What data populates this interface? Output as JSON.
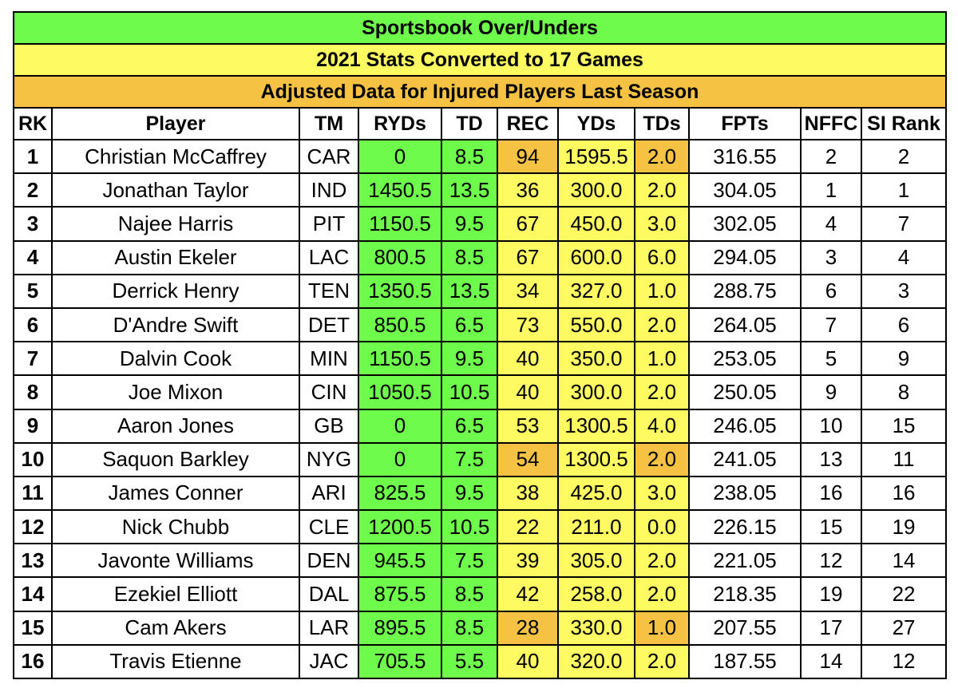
{
  "titles": {
    "line1": "Sportsbook Over/Unders",
    "line2": "2021 Stats Converted to 17 Games",
    "line3": "Adjusted Data for Injured Players Last Season"
  },
  "columns": [
    "RK",
    "Player",
    "TM",
    "RYDs",
    "TD",
    "REC",
    "YDs",
    "TDs",
    "FPTs",
    "NFFC",
    "SI Rank"
  ],
  "colors": {
    "green": "#6ffb4c",
    "yellow": "#fdfa62",
    "orange": "#f5c243",
    "white": "#ffffff"
  },
  "rows": [
    {
      "rk": "1",
      "player": "Christian McCaffrey",
      "tm": "CAR",
      "ryds": "0",
      "td": "8.5",
      "rec": "94",
      "yds": "1595.5",
      "tds": "2.0",
      "fpts": "316.55",
      "nffc": "2",
      "si": "2",
      "rec_color": "orange",
      "tds_color": "orange"
    },
    {
      "rk": "2",
      "player": "Jonathan Taylor",
      "tm": "IND",
      "ryds": "1450.5",
      "td": "13.5",
      "rec": "36",
      "yds": "300.0",
      "tds": "2.0",
      "fpts": "304.05",
      "nffc": "1",
      "si": "1",
      "rec_color": "yellow",
      "tds_color": "yellow"
    },
    {
      "rk": "3",
      "player": "Najee Harris",
      "tm": "PIT",
      "ryds": "1150.5",
      "td": "9.5",
      "rec": "67",
      "yds": "450.0",
      "tds": "3.0",
      "fpts": "302.05",
      "nffc": "4",
      "si": "7",
      "rec_color": "yellow",
      "tds_color": "yellow"
    },
    {
      "rk": "4",
      "player": "Austin Ekeler",
      "tm": "LAC",
      "ryds": "800.5",
      "td": "8.5",
      "rec": "67",
      "yds": "600.0",
      "tds": "6.0",
      "fpts": "294.05",
      "nffc": "3",
      "si": "4",
      "rec_color": "yellow",
      "tds_color": "yellow"
    },
    {
      "rk": "5",
      "player": "Derrick Henry",
      "tm": "TEN",
      "ryds": "1350.5",
      "td": "13.5",
      "rec": "34",
      "yds": "327.0",
      "tds": "1.0",
      "fpts": "288.75",
      "nffc": "6",
      "si": "3",
      "rec_color": "yellow",
      "tds_color": "yellow"
    },
    {
      "rk": "6",
      "player": "D'Andre Swift",
      "tm": "DET",
      "ryds": "850.5",
      "td": "6.5",
      "rec": "73",
      "yds": "550.0",
      "tds": "2.0",
      "fpts": "264.05",
      "nffc": "7",
      "si": "6",
      "rec_color": "yellow",
      "tds_color": "yellow"
    },
    {
      "rk": "7",
      "player": "Dalvin Cook",
      "tm": "MIN",
      "ryds": "1150.5",
      "td": "9.5",
      "rec": "40",
      "yds": "350.0",
      "tds": "1.0",
      "fpts": "253.05",
      "nffc": "5",
      "si": "9",
      "rec_color": "yellow",
      "tds_color": "yellow"
    },
    {
      "rk": "8",
      "player": "Joe Mixon",
      "tm": "CIN",
      "ryds": "1050.5",
      "td": "10.5",
      "rec": "40",
      "yds": "300.0",
      "tds": "2.0",
      "fpts": "250.05",
      "nffc": "9",
      "si": "8",
      "rec_color": "yellow",
      "tds_color": "yellow"
    },
    {
      "rk": "9",
      "player": "Aaron Jones",
      "tm": "GB",
      "ryds": "0",
      "td": "6.5",
      "rec": "53",
      "yds": "1300.5",
      "tds": "4.0",
      "fpts": "246.05",
      "nffc": "10",
      "si": "15",
      "rec_color": "yellow",
      "tds_color": "yellow"
    },
    {
      "rk": "10",
      "player": "Saquon Barkley",
      "tm": "NYG",
      "ryds": "0",
      "td": "7.5",
      "rec": "54",
      "yds": "1300.5",
      "tds": "2.0",
      "fpts": "241.05",
      "nffc": "13",
      "si": "11",
      "rec_color": "orange",
      "tds_color": "orange"
    },
    {
      "rk": "11",
      "player": "James Conner",
      "tm": "ARI",
      "ryds": "825.5",
      "td": "9.5",
      "rec": "38",
      "yds": "425.0",
      "tds": "3.0",
      "fpts": "238.05",
      "nffc": "16",
      "si": "16",
      "rec_color": "yellow",
      "tds_color": "yellow"
    },
    {
      "rk": "12",
      "player": "Nick Chubb",
      "tm": "CLE",
      "ryds": "1200.5",
      "td": "10.5",
      "rec": "22",
      "yds": "211.0",
      "tds": "0.0",
      "fpts": "226.15",
      "nffc": "15",
      "si": "19",
      "rec_color": "yellow",
      "tds_color": "yellow"
    },
    {
      "rk": "13",
      "player": "Javonte Williams",
      "tm": "DEN",
      "ryds": "945.5",
      "td": "7.5",
      "rec": "39",
      "yds": "305.0",
      "tds": "2.0",
      "fpts": "221.05",
      "nffc": "12",
      "si": "14",
      "rec_color": "yellow",
      "tds_color": "yellow"
    },
    {
      "rk": "14",
      "player": "Ezekiel Elliott",
      "tm": "DAL",
      "ryds": "875.5",
      "td": "8.5",
      "rec": "42",
      "yds": "258.0",
      "tds": "2.0",
      "fpts": "218.35",
      "nffc": "19",
      "si": "22",
      "rec_color": "yellow",
      "tds_color": "yellow"
    },
    {
      "rk": "15",
      "player": "Cam Akers",
      "tm": "LAR",
      "ryds": "895.5",
      "td": "8.5",
      "rec": "28",
      "yds": "330.0",
      "tds": "1.0",
      "fpts": "207.55",
      "nffc": "17",
      "si": "27",
      "rec_color": "orange",
      "tds_color": "orange"
    },
    {
      "rk": "16",
      "player": "Travis Etienne",
      "tm": "JAC",
      "ryds": "705.5",
      "td": "5.5",
      "rec": "40",
      "yds": "320.0",
      "tds": "2.0",
      "fpts": "187.55",
      "nffc": "14",
      "si": "12",
      "rec_color": "yellow",
      "tds_color": "yellow"
    }
  ]
}
